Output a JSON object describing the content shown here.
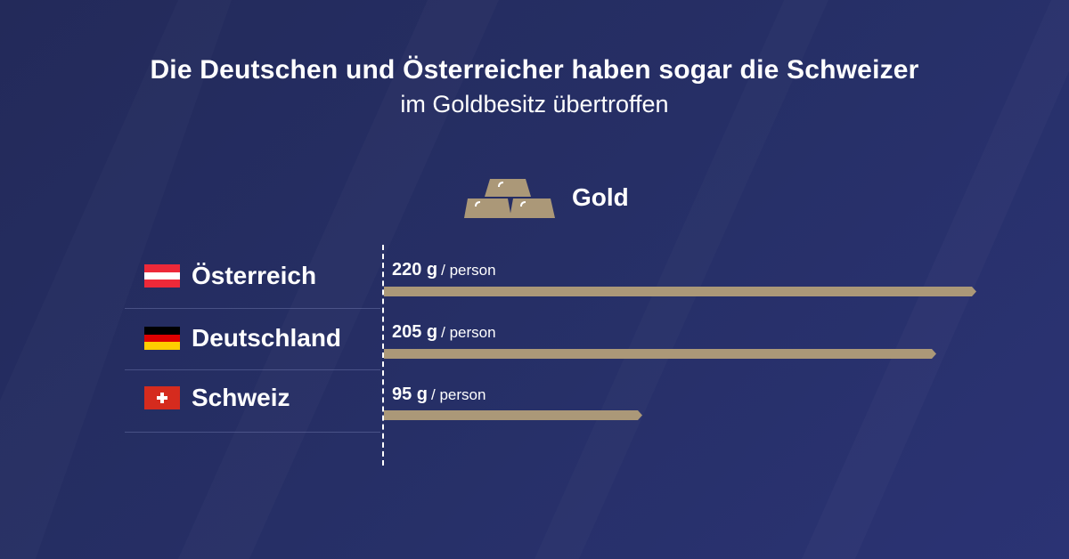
{
  "title": "Die Deutschen und Österreicher haben sogar die Schweizer",
  "subtitle": "im Goldbesitz übertroffen",
  "legend": {
    "label": "Gold",
    "icon": "gold-bars-icon",
    "color": "#ab9878"
  },
  "colors": {
    "background": "#262f66",
    "bar": "#ab9878",
    "text": "#ffffff"
  },
  "chart_data": {
    "type": "bar",
    "orientation": "horizontal",
    "categories": [
      "Österreich",
      "Deutschland",
      "Schweiz"
    ],
    "series": [
      {
        "name": "Gold",
        "values": [
          220,
          205,
          95
        ],
        "color": "#ab9878"
      }
    ],
    "value_labels": [
      {
        "value": "220 g",
        "unit": "/ person"
      },
      {
        "value": "205 g",
        "unit": "/ person"
      },
      {
        "value": "95 g",
        "unit": "/ person"
      }
    ],
    "flags": [
      "austria-flag",
      "germany-flag",
      "switzerland-flag"
    ]
  }
}
